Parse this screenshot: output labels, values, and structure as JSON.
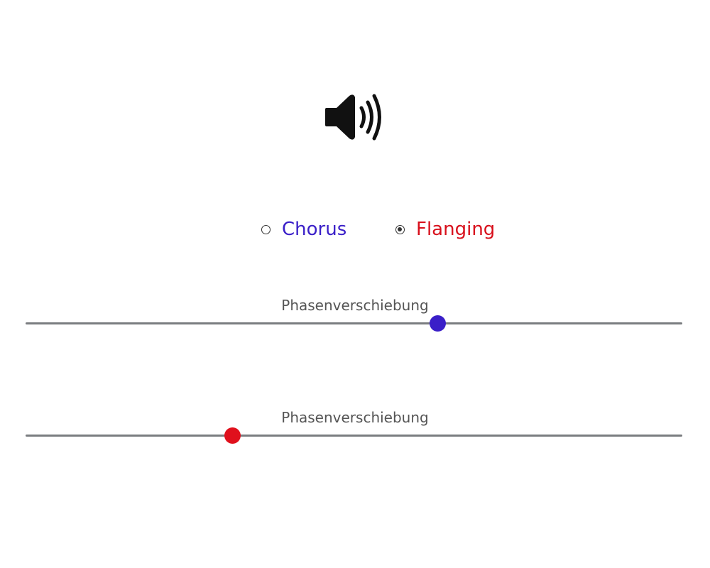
{
  "speaker": {
    "icon": "speaker-volume-icon"
  },
  "effect": {
    "options": [
      {
        "label": "Chorus",
        "color": "#3a1fc8",
        "selected": false
      },
      {
        "label": "Flanging",
        "color": "#d8101c",
        "selected": true
      }
    ]
  },
  "sliders": [
    {
      "label": "Phasenverschiebung",
      "value_fraction": 0.628,
      "color": "#3a1fc8"
    },
    {
      "label": "Phasenverschiebung",
      "value_fraction": 0.315,
      "color": "#e0101c"
    }
  ],
  "colors": {
    "track": "#7a7d80",
    "label_text": "#555555"
  }
}
